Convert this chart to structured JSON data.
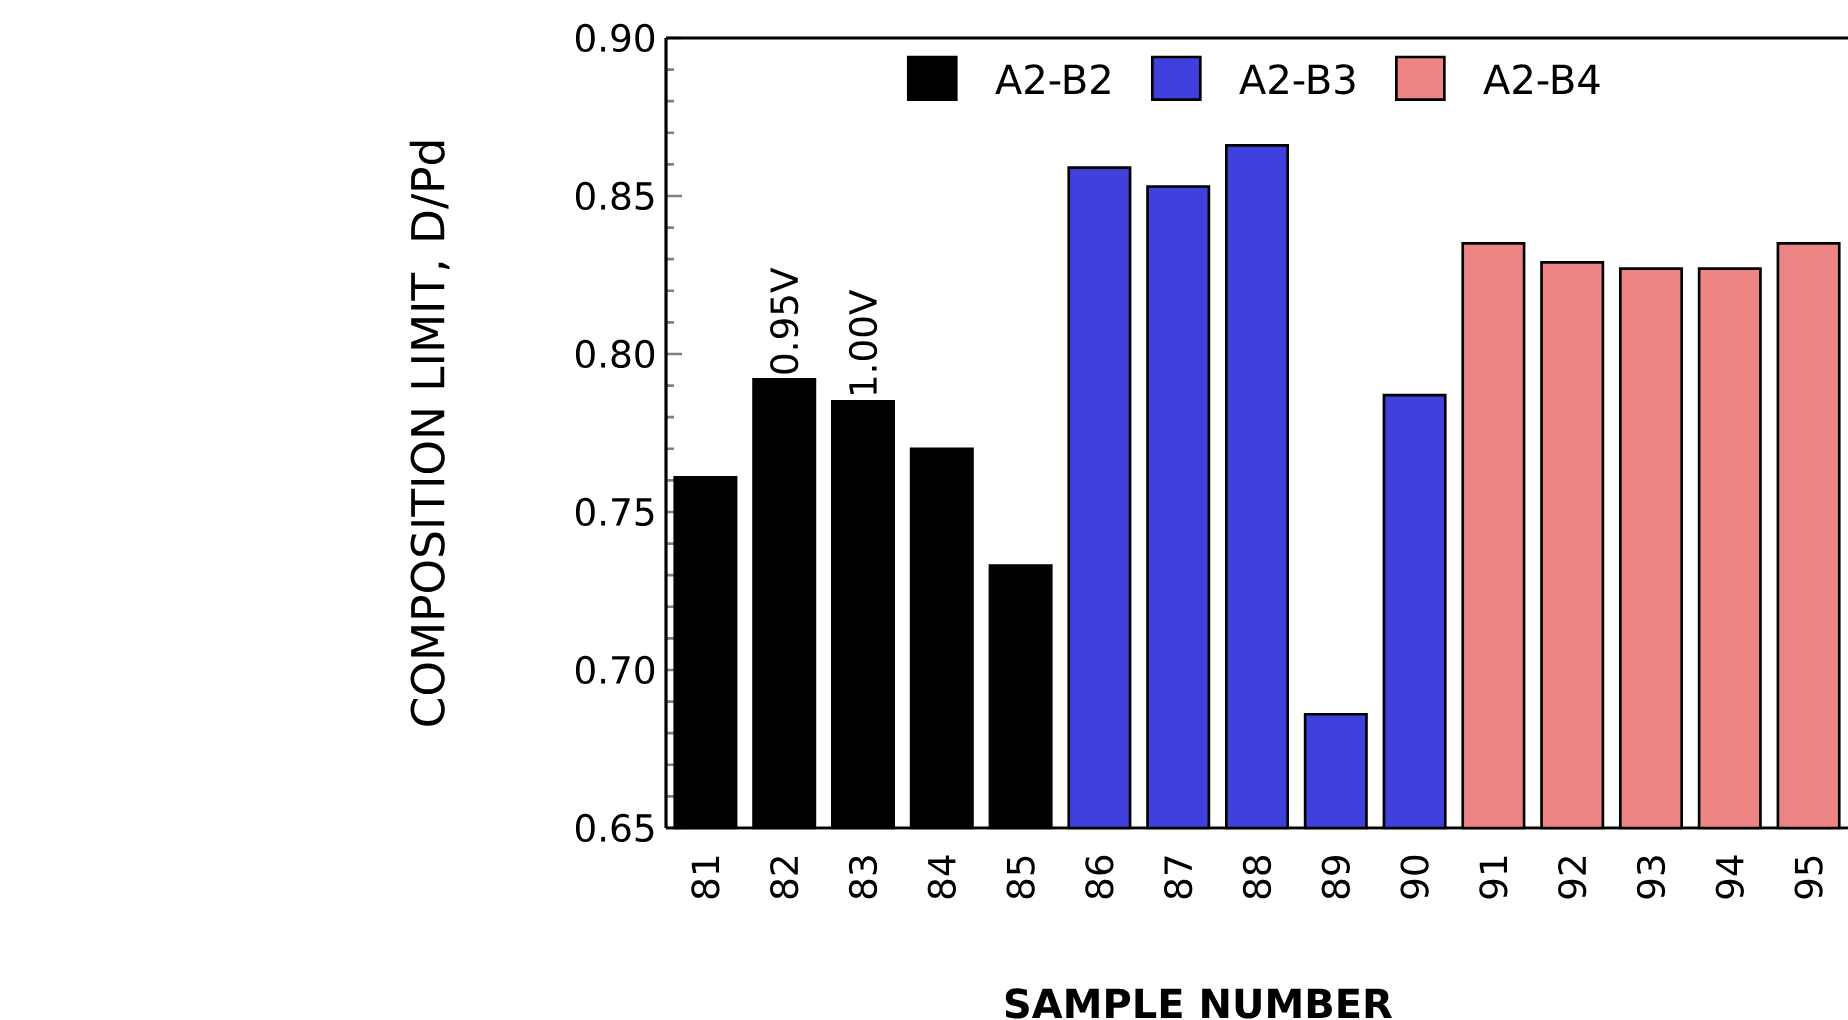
{
  "chart_data": {
    "type": "bar",
    "xlabel": "SAMPLE NUMBER",
    "ylabel": "COMPOSITION LIMIT, D/Pd",
    "categories": [
      "81",
      "82",
      "83",
      "84",
      "85",
      "86",
      "87",
      "88",
      "89",
      "90",
      "91",
      "92",
      "93",
      "94",
      "95"
    ],
    "series": [
      {
        "name": "A2-B2",
        "color": "#000000",
        "values": [
          0.761,
          0.792,
          0.785,
          0.77,
          0.733,
          null,
          null,
          null,
          null,
          null,
          null,
          null,
          null,
          null,
          null
        ]
      },
      {
        "name": "A2-B3",
        "color": "#4040dd",
        "values": [
          null,
          null,
          null,
          null,
          null,
          0.859,
          0.853,
          0.866,
          0.686,
          0.787,
          null,
          null,
          null,
          null,
          null
        ]
      },
      {
        "name": "A2-B4",
        "color": "#ee8585",
        "values": [
          null,
          null,
          null,
          null,
          null,
          null,
          null,
          null,
          null,
          null,
          0.835,
          0.829,
          0.827,
          0.827,
          0.835
        ]
      }
    ],
    "ylim": [
      0.65,
      0.9
    ],
    "yticks": [
      {
        "value": 0.65,
        "label": "0.65"
      },
      {
        "value": 0.7,
        "label": "0.70"
      },
      {
        "value": 0.75,
        "label": "0.75"
      },
      {
        "value": 0.8,
        "label": "0.80"
      },
      {
        "value": 0.85,
        "label": "0.85"
      },
      {
        "value": 0.9,
        "label": "0.90"
      }
    ],
    "annotations": [
      {
        "text": "0.95V",
        "x": "82",
        "y": 0.792
      },
      {
        "text": "1.00V",
        "x": "83",
        "y": 0.785
      }
    ],
    "legend": "top"
  }
}
